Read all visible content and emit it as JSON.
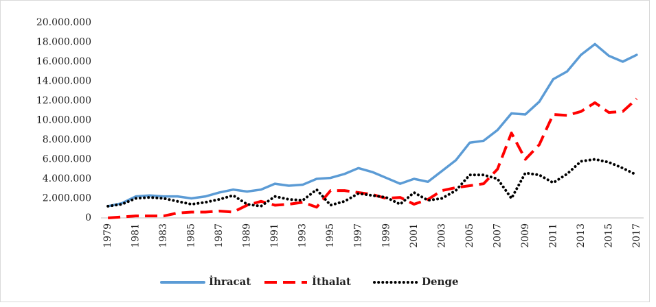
{
  "chart_data": {
    "type": "line",
    "categories": [
      "1979",
      null,
      "1981",
      null,
      "1983",
      null,
      "1985",
      null,
      "1987",
      null,
      "1989",
      null,
      "1991",
      null,
      "1993",
      null,
      "1995",
      null,
      "1997",
      null,
      "1999",
      null,
      "2001",
      null,
      "2003",
      null,
      "2005",
      null,
      "2007",
      null,
      "2009",
      null,
      "2011",
      null,
      "2013",
      null,
      "2015",
      null,
      "2017"
    ],
    "series": [
      {
        "name": "İhracat",
        "color": "#5b9bd5",
        "style": "solid",
        "values": [
          1200000,
          1500000,
          2200000,
          2300000,
          2200000,
          2200000,
          2000000,
          2200000,
          2600000,
          2900000,
          2700000,
          2900000,
          3500000,
          3300000,
          3400000,
          4000000,
          4100000,
          4500000,
          5100000,
          4700000,
          4100000,
          3500000,
          4000000,
          3700000,
          4800000,
          5900000,
          7700000,
          7900000,
          9000000,
          10700000,
          10600000,
          11900000,
          14200000,
          15000000,
          16700000,
          17800000,
          16600000,
          16000000,
          16700000
        ]
      },
      {
        "name": "İthalat",
        "color": "#ff0000",
        "style": "dashed",
        "values": [
          0,
          100000,
          200000,
          200000,
          200000,
          500000,
          600000,
          600000,
          700000,
          600000,
          1300000,
          1700000,
          1300000,
          1400000,
          1600000,
          1100000,
          2800000,
          2800000,
          2600000,
          2400000,
          2000000,
          2100000,
          1400000,
          1900000,
          2800000,
          3100000,
          3300000,
          3500000,
          5000000,
          8700000,
          6000000,
          7500000,
          10600000,
          10500000,
          10900000,
          11800000,
          10800000,
          10900000,
          12200000
        ]
      },
      {
        "name": "Denge",
        "color": "#000000",
        "style": "dotted",
        "values": [
          1200000,
          1400000,
          2000000,
          2100000,
          2000000,
          1700000,
          1400000,
          1600000,
          1900000,
          2300000,
          1400000,
          1200000,
          2200000,
          1900000,
          1800000,
          2900000,
          1300000,
          1700000,
          2500000,
          2300000,
          2100000,
          1400000,
          2600000,
          1800000,
          2000000,
          2800000,
          4400000,
          4400000,
          4000000,
          2000000,
          4600000,
          4400000,
          3600000,
          4500000,
          5800000,
          6000000,
          5700000,
          5100000,
          4400000
        ]
      }
    ],
    "ylim": [
      0,
      20000000
    ],
    "yticks": [
      0,
      {
        "value": 2000000,
        "label": "2.000.000"
      },
      {
        "value": 4000000,
        "label": "4.000.000"
      },
      {
        "value": 6000000,
        "label": "6.000.000"
      },
      {
        "value": 8000000,
        "label": "8.000.000"
      },
      {
        "value": 10000000,
        "label": "10.000.000"
      },
      {
        "value": 12000000,
        "label": "12.000.000"
      },
      {
        "value": 14000000,
        "label": "14.000.000"
      },
      {
        "value": 16000000,
        "label": "16.000.000"
      },
      {
        "value": 18000000,
        "label": "18.000.000"
      },
      {
        "value": 20000000,
        "label": "20.000.000"
      }
    ],
    "grid": false,
    "legend": "bottom"
  }
}
